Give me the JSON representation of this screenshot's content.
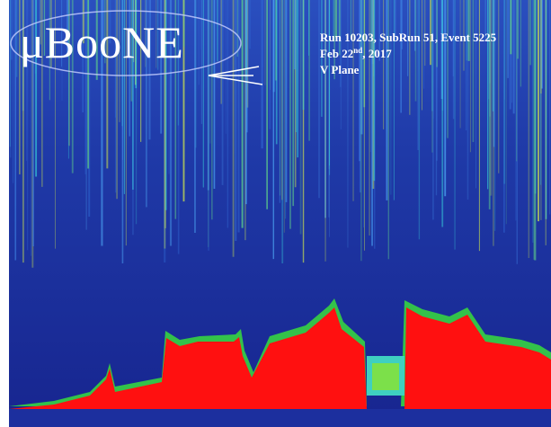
{
  "logo": "μBooNE",
  "info": {
    "run": "Run 10203, SubRun 51, Event 5225",
    "date_day": "Feb 22",
    "date_suffix": "nd",
    "date_year": ", 2017",
    "plane": "V Plane"
  }
}
